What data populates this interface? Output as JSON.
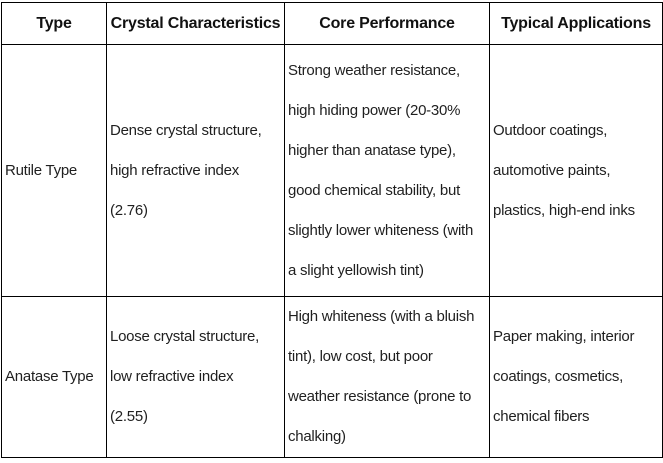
{
  "table": {
    "title": "titanium-dioxide-type-comparison",
    "headers": {
      "type": "Type",
      "crystal": "Crystal Characteristics",
      "performance": "Core Performance",
      "applications": "Typical Applications"
    },
    "rows": [
      {
        "type": "Rutile Type",
        "crystal": [
          "Dense crystal structure,",
          "high refractive index",
          "(2.76)"
        ],
        "performance": [
          "Strong weather resistance,",
          "high hiding power (20-30%",
          "higher than anatase type),",
          "good chemical stability, but",
          "slightly lower whiteness (with",
          "a slight yellowish tint)"
        ],
        "applications": [
          "Outdoor coatings,",
          "automotive paints,",
          "plastics, high-end inks"
        ]
      },
      {
        "type": "Anatase Type",
        "crystal": [
          "Loose crystal structure,",
          "low refractive index",
          "(2.55)"
        ],
        "performance": [
          "High whiteness (with a bluish",
          "tint), low cost, but poor",
          "weather resistance (prone to",
          "chalking)"
        ],
        "applications": [
          "Paper making, interior",
          "coatings, cosmetics,",
          "chemical fibers"
        ]
      }
    ]
  },
  "colors": {
    "border": "#000000",
    "text": "#1f1f1f",
    "background": "#ffffff"
  }
}
